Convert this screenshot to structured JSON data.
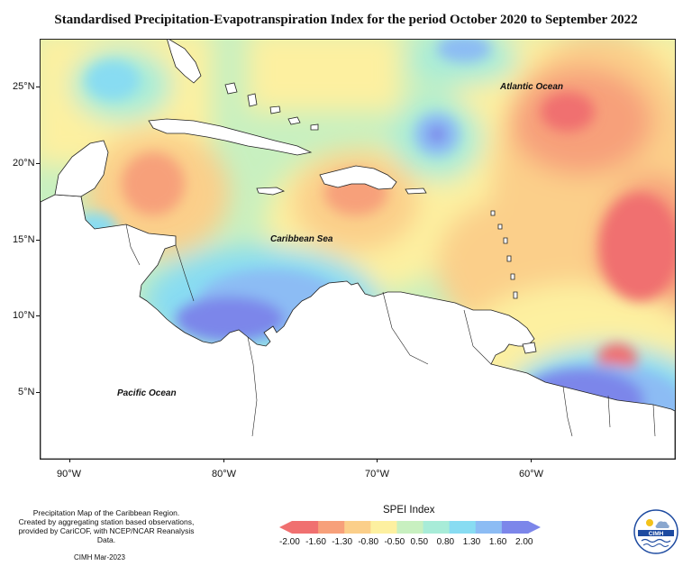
{
  "title": "Standardised Precipitation-Evapotranspiration Index for the period October 2020 to September 2022",
  "map": {
    "latitude_labels": [
      "25°N",
      "20°N",
      "15°N",
      "10°N",
      "5°N"
    ],
    "longitude_labels": [
      "90°W",
      "80°W",
      "70°W",
      "60°W"
    ],
    "region_labels": {
      "atlantic": "Atlantic Ocean",
      "caribbean": "Caribbean Sea",
      "pacific": "Pacific Ocean"
    },
    "colors": {
      "dry_strong": "#f07070",
      "dry_moderate": "#f7a07a",
      "dry_mild": "#fbcf8a",
      "dry_slight": "#fdf0a0",
      "normal": "#c8f0c0",
      "wet_slight": "#a8ecd8",
      "wet_mild": "#88dcf2",
      "wet_moderate": "#8cbcf4",
      "wet_strong": "#7c86ea",
      "land": "#ffffff"
    }
  },
  "legend": {
    "title": "SPEI Index",
    "values": [
      "-2.00",
      "-1.60",
      "-1.30",
      "-0.80",
      "-0.50",
      "0.50",
      "0.80",
      "1.30",
      "1.60",
      "2.00"
    ],
    "colors": [
      "#f07070",
      "#f7a07a",
      "#fbcf8a",
      "#fdf0a0",
      "#c8f0c0",
      "#a8ecd8",
      "#88dcf2",
      "#8cbcf4",
      "#7c86ea"
    ]
  },
  "footer": {
    "description_lines": [
      "Precipitation Map of the Caribbean Region.",
      "Created by aggregating station based observations,",
      "provided by CariCOF, with NCEP/NCAR Reanalysis Data."
    ],
    "credit": "CIMH Mar-2023",
    "logo_text": "CIMH"
  }
}
